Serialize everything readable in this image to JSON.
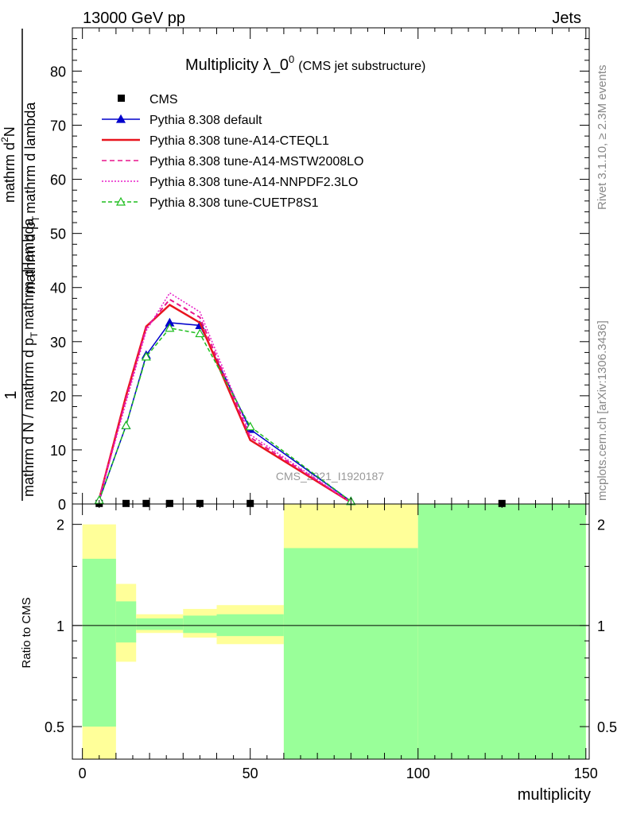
{
  "header": {
    "left": "13000 GeV pp",
    "right": "Jets"
  },
  "side_labels": {
    "top": "Rivet 3.1.10, ≥ 2.3M events",
    "bottom": "mcplots.cern.ch [arXiv:1306.3436]"
  },
  "watermark": "CMS_2021_I1920187",
  "chart_data": [
    {
      "type": "line",
      "title": "Multiplicity λ_0",
      "title_superscript": "0",
      "subtitle": "(CMS jet substructure)",
      "ylabel": {
        "numerator": "1",
        "denominator": "mathrm d N / mathrm d p",
        "denominator_sub": "T",
        "denominator_tail": "mathrm d lambda",
        "side_numerator": "mathrm d",
        "side_numerator_sup": "2",
        "side_numerator_tail": "N",
        "side_denominator": "mathrm d p",
        "side_denominator_sub": "T",
        "side_denominator_tail": "mathrm d lambda"
      },
      "xlim": [
        -3,
        151
      ],
      "ylim": [
        0,
        88
      ],
      "yticks": [
        "0",
        "10",
        "20",
        "30",
        "40",
        "50",
        "60",
        "70",
        "80"
      ],
      "ytick_values": [
        0,
        10,
        20,
        30,
        40,
        50,
        60,
        70,
        80
      ],
      "grid": false,
      "legend_position": "top-left",
      "series": [
        {
          "name": "CMS",
          "color": "#000000",
          "marker": "square",
          "x": [
            5,
            13,
            19,
            26,
            35,
            50,
            125
          ],
          "y": [
            0.1,
            0.1,
            0.1,
            0.1,
            0.1,
            0.1,
            0.1
          ]
        },
        {
          "name": "Pythia 8.308 default",
          "color": "#0000cc",
          "marker": "triangle-filled",
          "dash": "",
          "x": [
            5,
            13,
            19,
            26,
            35,
            50,
            80
          ],
          "y": [
            0.7,
            14.5,
            27.5,
            33.5,
            33.0,
            13.8,
            0.5
          ]
        },
        {
          "name": "Pythia 8.308 tune-A14-CTEQL1",
          "color": "#e8141e",
          "marker": "none",
          "dash": "",
          "x": [
            5,
            13,
            19,
            26,
            35,
            50,
            80
          ],
          "y": [
            0.9,
            20.0,
            32.8,
            36.8,
            33.5,
            11.8,
            0.3
          ]
        },
        {
          "name": "Pythia 8.308 tune-A14-MSTW2008LO",
          "color": "#e8148c",
          "marker": "none",
          "dash": "6,4",
          "x": [
            5,
            13,
            19,
            26,
            35,
            50,
            80
          ],
          "y": [
            0.9,
            19.5,
            32.5,
            37.8,
            34.5,
            12.3,
            0.3
          ]
        },
        {
          "name": "Pythia 8.308 tune-A14-NNPDF2.3LO",
          "color": "#e81ec8",
          "marker": "none",
          "dash": "2,2",
          "x": [
            5,
            13,
            19,
            26,
            35,
            50,
            80
          ],
          "y": [
            0.9,
            18.8,
            32.0,
            39.0,
            35.5,
            12.8,
            0.3
          ]
        },
        {
          "name": "Pythia 8.308 tune-CUETP8S1",
          "color": "#1ebe1e",
          "marker": "triangle-open",
          "dash": "5,3",
          "x": [
            5,
            13,
            19,
            26,
            35,
            50,
            80
          ],
          "y": [
            0.7,
            14.5,
            27.2,
            32.5,
            31.5,
            14.3,
            0.5
          ]
        }
      ]
    },
    {
      "type": "area",
      "ylabel": "Ratio to CMS",
      "xlabel": "multiplicity",
      "xlim": [
        -3,
        151
      ],
      "ylim": [
        0.4,
        2.3
      ],
      "xticks": [
        "0",
        "50",
        "100",
        "150"
      ],
      "xtick_values": [
        0,
        50,
        100,
        150
      ],
      "yticks": [
        "0.5",
        "1",
        "2"
      ],
      "ytick_values": [
        0.5,
        1,
        2
      ],
      "reference_line": 1,
      "band_colors": {
        "outer": "#ffff99",
        "inner": "#99ff99"
      },
      "bins": [
        {
          "x0": 0,
          "x1": 10,
          "outer": [
            0.4,
            2.0
          ],
          "inner": [
            0.5,
            1.58
          ]
        },
        {
          "x0": 10,
          "x1": 16,
          "outer": [
            0.78,
            1.33
          ],
          "inner": [
            0.89,
            1.18
          ]
        },
        {
          "x0": 16,
          "x1": 30,
          "outer": [
            0.95,
            1.08
          ],
          "inner": [
            0.97,
            1.05
          ]
        },
        {
          "x0": 30,
          "x1": 40,
          "outer": [
            0.92,
            1.12
          ],
          "inner": [
            0.95,
            1.07
          ]
        },
        {
          "x0": 40,
          "x1": 60,
          "outer": [
            0.88,
            1.15
          ],
          "inner": [
            0.93,
            1.08
          ]
        },
        {
          "x0": 60,
          "x1": 100,
          "outer": [
            0.4,
            2.3
          ],
          "inner": [
            0.4,
            1.7
          ]
        },
        {
          "x0": 100,
          "x1": 150,
          "outer": [
            0.4,
            2.3
          ],
          "inner": [
            0.4,
            2.3
          ]
        }
      ]
    }
  ]
}
